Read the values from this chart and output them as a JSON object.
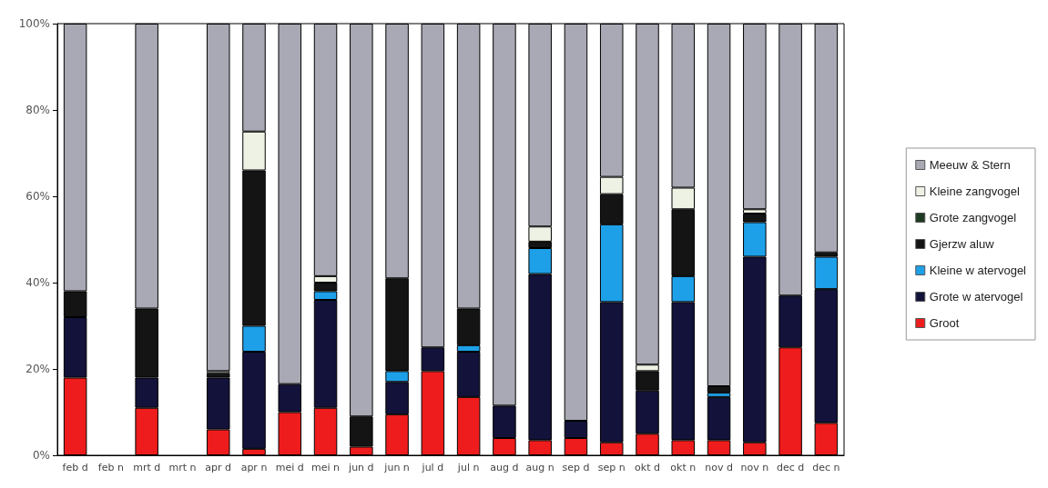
{
  "chart_data": {
    "type": "bar",
    "stacked": true,
    "categories": [
      "feb d",
      "feb n",
      "mrt d",
      "mrt n",
      "apr d",
      "apr n",
      "mei d",
      "mei n",
      "jun d",
      "jun n",
      "jul d",
      "jul n",
      "aug d",
      "aug n",
      "sep d",
      "sep n",
      "okt d",
      "okt n",
      "nov d",
      "nov n",
      "dec d",
      "dec n"
    ],
    "series": [
      {
        "name": "Groot",
        "color": "#ee1c1c",
        "values": [
          18,
          null,
          11,
          null,
          6,
          1.5,
          10,
          11,
          2,
          9.5,
          19.5,
          13.5,
          4,
          3.5,
          4,
          3,
          5,
          3.5,
          3.5,
          3,
          25,
          7.5
        ]
      },
      {
        "name": "Grote w atervogel",
        "color": "#12123a",
        "values": [
          14,
          null,
          7,
          null,
          12,
          22.5,
          6.5,
          25,
          0,
          7.5,
          5.5,
          10.5,
          7.5,
          38.5,
          4,
          32.5,
          10,
          32,
          10,
          43,
          12,
          31
        ]
      },
      {
        "name": "Kleine w atervogel",
        "color": "#1ea0e8",
        "values": [
          0,
          null,
          0,
          null,
          0,
          6,
          0,
          2,
          0,
          2.5,
          0,
          1.5,
          0,
          6,
          0,
          18,
          0,
          6,
          1,
          8,
          0,
          7.5
        ]
      },
      {
        "name": "Gjerzw aluw",
        "color": "#141414",
        "values": [
          6,
          null,
          16,
          null,
          1,
          36,
          0,
          2,
          7,
          21.5,
          0,
          8.5,
          0,
          1.5,
          0,
          7,
          4.5,
          15.5,
          1.5,
          2,
          0,
          1
        ]
      },
      {
        "name": "Grote zangvogel",
        "color": "#1f3a22",
        "values": [
          0,
          null,
          0,
          null,
          0,
          0,
          0,
          0,
          0,
          0,
          0,
          0,
          0,
          0,
          0,
          0,
          0,
          0,
          0,
          0,
          0,
          0
        ]
      },
      {
        "name": "Kleine zangvogel",
        "color": "#eef2e4",
        "values": [
          0,
          null,
          0,
          null,
          0.5,
          9,
          0,
          1.5,
          0,
          0,
          0,
          0,
          0,
          3.5,
          0,
          4,
          1.5,
          5,
          0,
          1,
          0,
          0
        ]
      },
      {
        "name": "Meeuw & Stern",
        "color": "#a9a9b5",
        "values": [
          62,
          null,
          66,
          null,
          80.5,
          25,
          83.5,
          58.5,
          91,
          59,
          75,
          66,
          88.5,
          47,
          92,
          35.5,
          79,
          38,
          84,
          43,
          63,
          53
        ]
      }
    ],
    "ylim": [
      0,
      100
    ],
    "yticks": [
      {
        "value": 0,
        "label": "0%"
      },
      {
        "value": 20,
        "label": "20%"
      },
      {
        "value": 40,
        "label": "40%"
      },
      {
        "value": 60,
        "label": "60%"
      },
      {
        "value": 80,
        "label": "80%"
      },
      {
        "value": 100,
        "label": "100%"
      }
    ],
    "grid": false,
    "legend": "right"
  }
}
